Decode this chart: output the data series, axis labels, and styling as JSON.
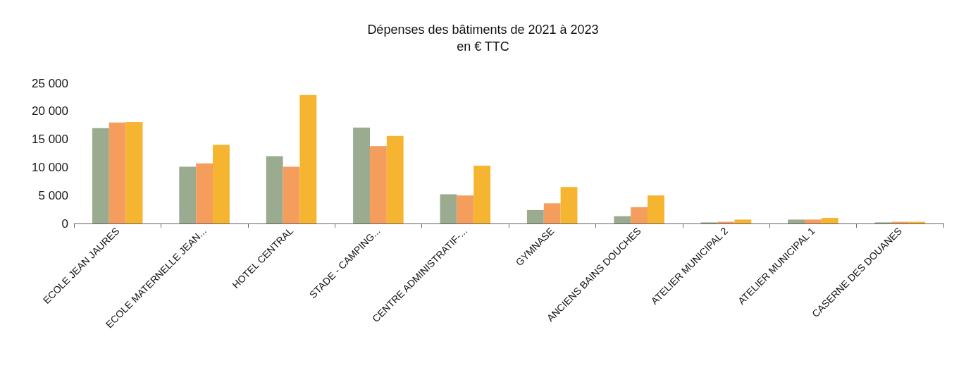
{
  "chart_data": {
    "type": "bar",
    "title": "Dépenses des bâtiments de 2021 à 2023",
    "subtitle": "en € TTC",
    "categories": [
      "ECOLE JEAN JAURES",
      "ECOLE MATERNELLE JEAN...",
      "HOTEL CENTRAL",
      "STADE - CAMPING...",
      "CENTRE ADMINISTRATIF-...",
      "GYMNASE",
      "ANCIENS BAINS DOUCHES",
      "ATELIER MUNICIPAL 2",
      "ATELIER MUNICIPAL 1",
      "CASERNE DES DOUANES"
    ],
    "series": [
      {
        "color": "#9aab8f",
        "values": [
          17000,
          10100,
          12000,
          17100,
          5200,
          2400,
          1300,
          200,
          700,
          200
        ]
      },
      {
        "color": "#f59d5c",
        "values": [
          18000,
          10700,
          10100,
          13800,
          5000,
          3600,
          2900,
          300,
          700,
          300
        ]
      },
      {
        "color": "#f5b531",
        "values": [
          18100,
          14000,
          22900,
          15600,
          10300,
          6500,
          5000,
          700,
          1000,
          300
        ]
      }
    ],
    "ylim": [
      0,
      25000
    ],
    "yticks": [
      0,
      5000,
      10000,
      15000,
      20000,
      25000
    ],
    "grid": false
  }
}
